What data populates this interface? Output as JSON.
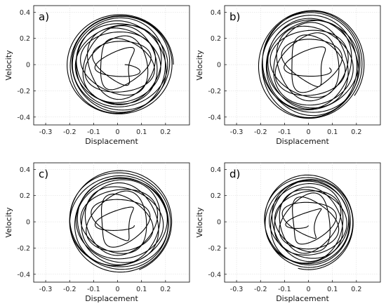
{
  "chart_data": [
    {
      "type": "line",
      "panel_label": "a)",
      "xlabel": "Displacement",
      "ylabel": "Velocity",
      "xlim": [
        -0.35,
        0.3
      ],
      "ylim": [
        -0.46,
        0.45
      ],
      "xticks": [
        "-0.3",
        "-0.2",
        "-0.1",
        "0",
        "0.1",
        "0.2"
      ],
      "yticks": [
        "0.4",
        "0.2",
        "0",
        "-0.2",
        "-0.4"
      ],
      "grid": true,
      "trajectory": {
        "center": [
          0.01,
          0.0
        ],
        "outer_radius": [
          0.22,
          0.39
        ],
        "inner_radius": [
          0.02,
          0.03
        ],
        "turns": 14
      }
    },
    {
      "type": "line",
      "panel_label": "b)",
      "xlabel": "Displacement",
      "ylabel": "Velocity",
      "xlim": [
        -0.35,
        0.3
      ],
      "ylim": [
        -0.46,
        0.45
      ],
      "xticks": [
        "-0.3",
        "-0.2",
        "-0.1",
        "0",
        "0.1",
        "0.2"
      ],
      "yticks": [
        "0.4",
        "0.2",
        "0",
        "-0.2",
        "-0.4"
      ],
      "grid": true,
      "trajectory": {
        "center": [
          0.01,
          0.0
        ],
        "outer_radius": [
          0.22,
          0.42
        ],
        "inner_radius": [
          0.03,
          0.04
        ],
        "turns": 14
      }
    },
    {
      "type": "line",
      "panel_label": "c)",
      "xlabel": "Displacement",
      "ylabel": "Velocity",
      "xlim": [
        -0.35,
        0.3
      ],
      "ylim": [
        -0.46,
        0.45
      ],
      "xticks": [
        "-0.3",
        "-0.2",
        "-0.1",
        "0",
        "0.1",
        "0.2"
      ],
      "yticks": [
        "0.4",
        "0.2",
        "0",
        "-0.2",
        "-0.4"
      ],
      "grid": true,
      "trajectory": {
        "center": [
          0.01,
          0.0
        ],
        "outer_radius": [
          0.22,
          0.39
        ],
        "inner_radius": [
          0.02,
          0.03
        ],
        "turns": 13
      }
    },
    {
      "type": "line",
      "panel_label": "d)",
      "xlabel": "Displacement",
      "ylabel": "Velocity",
      "xlim": [
        -0.35,
        0.3
      ],
      "ylim": [
        -0.46,
        0.45
      ],
      "xticks": [
        "-0.3",
        "-0.2",
        "-0.1",
        "0",
        "0.1",
        "0.2"
      ],
      "yticks": [
        "0.4",
        "0.2",
        "0",
        "-0.2",
        "-0.4"
      ],
      "grid": true,
      "trajectory": {
        "center": [
          0.0,
          0.0
        ],
        "outer_radius": [
          0.19,
          0.36
        ],
        "inner_radius": [
          0.02,
          0.03
        ],
        "turns": 13
      }
    }
  ]
}
